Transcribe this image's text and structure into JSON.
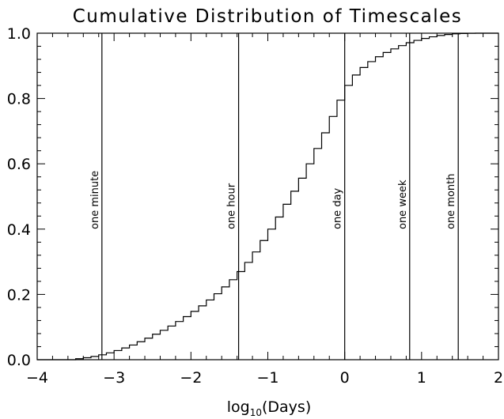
{
  "chart_data": {
    "type": "line",
    "title": "Cumulative Distribution of Timescales",
    "xlabel": {
      "prefix": "log",
      "subscript": "10",
      "suffix": "(Days)"
    },
    "ylabel": "",
    "xlim": [
      -4,
      2
    ],
    "ylim": [
      0,
      1.0
    ],
    "xticks": [
      -4,
      -3,
      -2,
      -1,
      0,
      1,
      2
    ],
    "xtick_labels": [
      "−4",
      "−3",
      "−2",
      "−1",
      "0",
      "1",
      "2"
    ],
    "yticks": [
      0.0,
      0.2,
      0.4,
      0.6,
      0.8,
      1.0
    ],
    "ytick_labels": [
      "0.0",
      "0.2",
      "0.4",
      "0.6",
      "0.8",
      "1.0"
    ],
    "grid": false,
    "step_width": 0.1,
    "series": [
      {
        "style": "step",
        "x": [
          -3.5,
          -3.4,
          -3.3,
          -3.2,
          -3.1,
          -3.0,
          -2.9,
          -2.8,
          -2.7,
          -2.6,
          -2.5,
          -2.4,
          -2.3,
          -2.2,
          -2.1,
          -2.0,
          -1.9,
          -1.8,
          -1.7,
          -1.6,
          -1.5,
          -1.4,
          -1.3,
          -1.2,
          -1.1,
          -1.0,
          -0.9,
          -0.8,
          -0.7,
          -0.6,
          -0.5,
          -0.4,
          -0.3,
          -0.2,
          -0.1,
          0.0,
          0.1,
          0.2,
          0.3,
          0.4,
          0.5,
          0.6,
          0.7,
          0.8,
          0.9,
          1.0,
          1.1,
          1.2,
          1.3,
          1.4,
          1.5,
          1.6,
          1.7,
          1.8,
          1.9
        ],
        "y": [
          0.003,
          0.006,
          0.01,
          0.015,
          0.021,
          0.028,
          0.036,
          0.045,
          0.055,
          0.066,
          0.078,
          0.09,
          0.103,
          0.117,
          0.132,
          0.148,
          0.165,
          0.183,
          0.202,
          0.223,
          0.245,
          0.27,
          0.298,
          0.33,
          0.365,
          0.4,
          0.437,
          0.476,
          0.516,
          0.556,
          0.6,
          0.647,
          0.695,
          0.745,
          0.795,
          0.84,
          0.872,
          0.895,
          0.913,
          0.928,
          0.941,
          0.952,
          0.962,
          0.971,
          0.978,
          0.984,
          0.989,
          0.993,
          0.996,
          0.998,
          0.999,
          0.9995,
          1.0,
          1.0,
          1.0
        ]
      }
    ],
    "reference_lines": [
      {
        "x": -3.158,
        "label": "one minute"
      },
      {
        "x": -1.38,
        "label": "one hour"
      },
      {
        "x": 0.0,
        "label": "one day"
      },
      {
        "x": 0.845,
        "label": "one week"
      },
      {
        "x": 1.477,
        "label": "one month"
      }
    ]
  }
}
